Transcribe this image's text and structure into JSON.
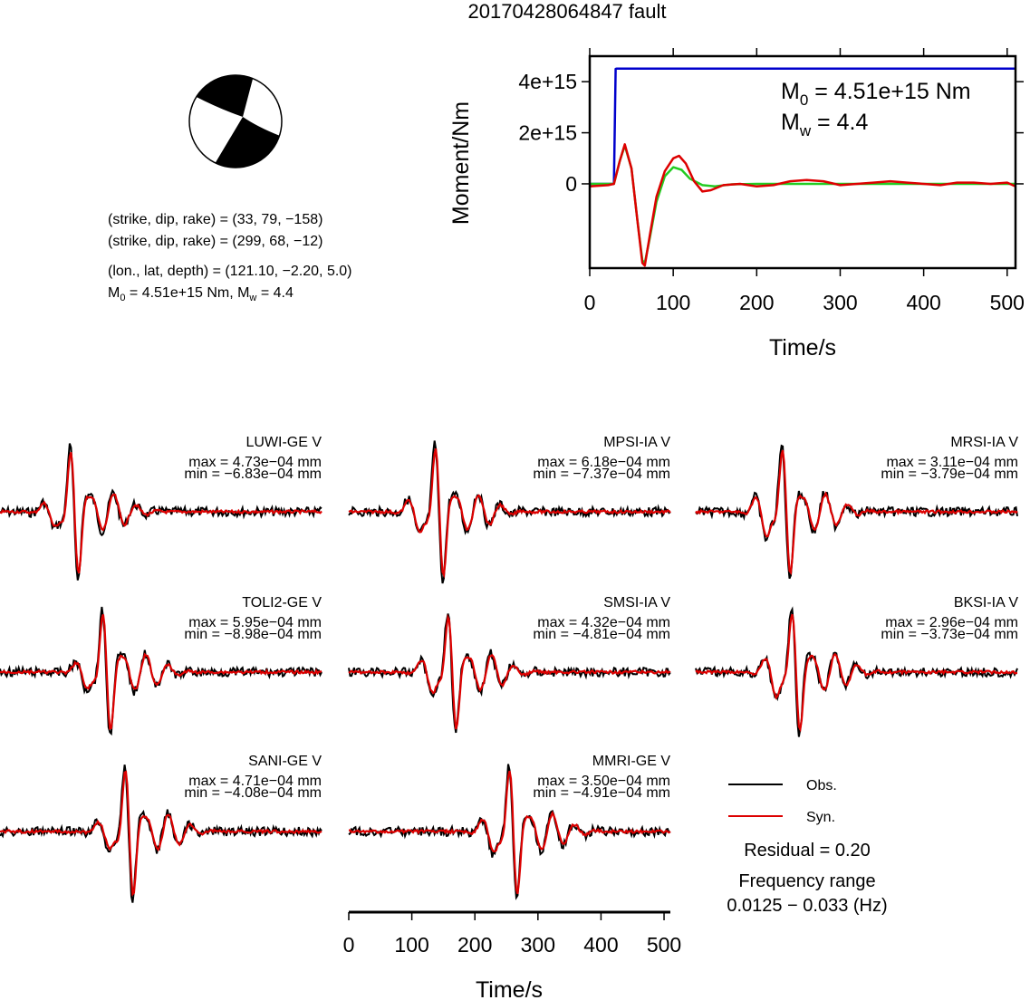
{
  "title": "20170428064847 fault",
  "source_info": {
    "line1": "(strike, dip, rake) = (33, 79, −158)",
    "line2": "(strike, dip, rake) = (299, 68, −12)",
    "line3": "(lon., lat, depth) = (121.10, −2.20, 5.0)",
    "m0_label": "M",
    "m0_sub": "0",
    "m0_rest": " = 4.51e+15 Nm, M",
    "mw_sub": "w",
    "mw_rest": " = 4.4"
  },
  "moment_panel": {
    "ylabel": "Moment/Nm",
    "xlabel": "Time/s",
    "m0_text_main": "M",
    "m0_text_sub": "0",
    "m0_text_rest": " = 4.51e+15 Nm",
    "mw_text_main": "M",
    "mw_text_sub": "w",
    "mw_text_rest": " = 4.4",
    "yticks": [
      {
        "value": 0,
        "label": "0"
      },
      {
        "value": 2000000000000000.0,
        "label": "2e+15"
      },
      {
        "value": 4000000000000000.0,
        "label": "4e+15"
      }
    ],
    "xticks": [
      0,
      100,
      200,
      300,
      400,
      500
    ],
    "colors": {
      "cumulative": "#0000cc",
      "rate_obs": "#dd0000",
      "rate_syn": "#22cc22"
    }
  },
  "stations": [
    {
      "name": "LUWI-GE V",
      "max": "max = 4.73e−04 mm",
      "min": "min = −6.83e−04 mm"
    },
    {
      "name": "MPSI-IA V",
      "max": "max = 6.18e−04 mm",
      "min": "min = −7.37e−04 mm"
    },
    {
      "name": "MRSI-IA V",
      "max": "max = 3.11e−04 mm",
      "min": "min = −3.79e−04 mm"
    },
    {
      "name": "TOLI2-GE V",
      "max": "max = 5.95e−04 mm",
      "min": "min = −8.98e−04 mm"
    },
    {
      "name": "SMSI-IA V",
      "max": "max = 4.32e−04 mm",
      "min": "min = −4.81e−04 mm"
    },
    {
      "name": "BKSI-IA V",
      "max": "max = 2.96e−04 mm",
      "min": "min = −3.73e−04 mm"
    },
    {
      "name": "SANI-GE V",
      "max": "max = 4.71e−04 mm",
      "min": "min = −4.08e−04 mm"
    },
    {
      "name": "MMRI-GE V",
      "max": "max = 3.50e−04 mm",
      "min": "min = −4.91e−04 mm"
    }
  ],
  "legend": {
    "obs": "Obs.",
    "syn": "Syn.",
    "obs_color": "#000000",
    "syn_color": "#dd0000"
  },
  "residual": "Residual = 0.20",
  "freq_label": "Frequency range",
  "freq_value": "0.0125 − 0.033 (Hz)",
  "wave_axis": {
    "xlabel": "Time/s",
    "xticks": [
      0,
      100,
      200,
      300,
      400,
      500
    ]
  },
  "chart_data": [
    {
      "type": "line",
      "title": "",
      "xlabel": "Time/s",
      "ylabel": "Moment/Nm",
      "xlim": [
        0,
        510
      ],
      "ylim": [
        -3300000000000000.0,
        5000000000000000.0
      ],
      "series": [
        {
          "x": [
            0,
            28,
            29,
            31,
            32,
            510
          ],
          "y": [
            0,
            0,
            0,
            4500000000000000.0,
            4510000000000000.0,
            4510000000000000.0
          ]
        },
        {
          "x": [
            0,
            22,
            29,
            36,
            42,
            50,
            57,
            63,
            66,
            72,
            80,
            90,
            100,
            107,
            115,
            125,
            135,
            145,
            160,
            180,
            200,
            220,
            240,
            260,
            280,
            300,
            320,
            340,
            360,
            380,
            400,
            420,
            440,
            460,
            480,
            500,
            510
          ],
          "y": [
            -100000000000000.0,
            -50000000000000.0,
            0,
            900000000000000.0,
            1550000000000000.0,
            600000000000000.0,
            -1400000000000000.0,
            -3100000000000000.0,
            -3200000000000000.0,
            -2000000000000000.0,
            -500000000000000.0,
            500000000000000.0,
            1000000000000000.0,
            1100000000000000.0,
            800000000000000.0,
            100000000000000.0,
            -300000000000000.0,
            -250000000000000.0,
            -50000000000000.0,
            0,
            -100000000000000.0,
            -50000000000000.0,
            100000000000000.0,
            150000000000000.0,
            100000000000000.0,
            -50000000000000.0,
            0,
            50000000000000.0,
            100000000000000.0,
            50000000000000.0,
            0,
            -50000000000000.0,
            50000000000000.0,
            50000000000000.0,
            0,
            50000000000000.0,
            -100000000000000.0
          ]
        },
        {
          "x": [
            0,
            22,
            29,
            36,
            42,
            50,
            57,
            63,
            66,
            72,
            80,
            90,
            100,
            110,
            120,
            135,
            150,
            170,
            200,
            250,
            300,
            400,
            510
          ],
          "y": [
            0,
            0,
            0,
            900000000000000.0,
            1500000000000000.0,
            600000000000000.0,
            -1400000000000000.0,
            -3000000000000000.0,
            -3100000000000000.0,
            -2100000000000000.0,
            -700000000000000.0,
            300000000000000.0,
            650000000000000.0,
            550000000000000.0,
            200000000000000.0,
            -50000000000000.0,
            -100000000000000.0,
            -20000000000000.0,
            0,
            0,
            0,
            0,
            0
          ]
        }
      ]
    }
  ]
}
